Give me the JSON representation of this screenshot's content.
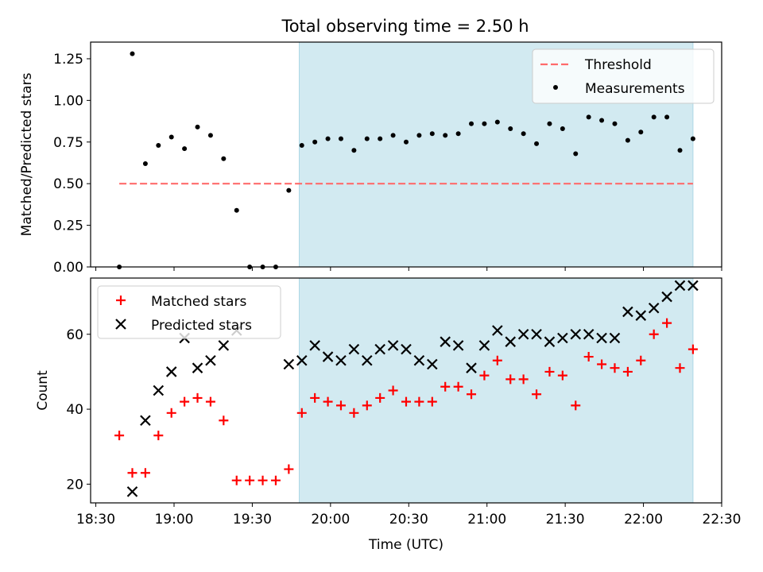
{
  "title": "Total observing time = 2.50 h",
  "colors": {
    "shade": "#add8e6",
    "threshold": "#ff6b6b",
    "measurements": "#000000",
    "matched": "#ff0000",
    "predicted": "#000000"
  },
  "chart_data": [
    {
      "type": "scatter",
      "ylabel": "Matched/Predicted stars",
      "xlim": [
        "18:28",
        "22:30"
      ],
      "ylim": [
        0,
        1.35
      ],
      "yticks": [
        "0.00",
        "0.25",
        "0.50",
        "0.75",
        "1.00",
        "1.25"
      ],
      "shaded_span": [
        "19:48",
        "22:19"
      ],
      "legend": {
        "position": "top-right",
        "entries": [
          "Threshold",
          "Measurements"
        ]
      },
      "threshold": {
        "name": "Threshold",
        "y": 0.5,
        "x_range": [
          "18:39",
          "22:19"
        ]
      },
      "series": [
        {
          "name": "Measurements",
          "points": [
            [
              "18:39",
              0.0
            ],
            [
              "18:44",
              1.28
            ],
            [
              "18:49",
              0.62
            ],
            [
              "18:54",
              0.73
            ],
            [
              "18:59",
              0.78
            ],
            [
              "19:04",
              0.71
            ],
            [
              "19:09",
              0.84
            ],
            [
              "19:14",
              0.79
            ],
            [
              "19:19",
              0.65
            ],
            [
              "19:24",
              0.34
            ],
            [
              "19:29",
              0.0
            ],
            [
              "19:34",
              0.0
            ],
            [
              "19:39",
              0.0
            ],
            [
              "19:44",
              0.46
            ],
            [
              "19:49",
              0.73
            ],
            [
              "19:54",
              0.75
            ],
            [
              "19:59",
              0.77
            ],
            [
              "20:04",
              0.77
            ],
            [
              "20:09",
              0.7
            ],
            [
              "20:14",
              0.77
            ],
            [
              "20:19",
              0.77
            ],
            [
              "20:24",
              0.79
            ],
            [
              "20:29",
              0.75
            ],
            [
              "20:34",
              0.79
            ],
            [
              "20:39",
              0.8
            ],
            [
              "20:44",
              0.79
            ],
            [
              "20:49",
              0.8
            ],
            [
              "20:54",
              0.86
            ],
            [
              "20:59",
              0.86
            ],
            [
              "21:04",
              0.87
            ],
            [
              "21:09",
              0.83
            ],
            [
              "21:14",
              0.8
            ],
            [
              "21:19",
              0.74
            ],
            [
              "21:24",
              0.86
            ],
            [
              "21:29",
              0.83
            ],
            [
              "21:34",
              0.68
            ],
            [
              "21:39",
              0.9
            ],
            [
              "21:44",
              0.88
            ],
            [
              "21:49",
              0.86
            ],
            [
              "21:54",
              0.76
            ],
            [
              "21:59",
              0.81
            ],
            [
              "22:04",
              0.9
            ],
            [
              "22:09",
              0.9
            ],
            [
              "22:14",
              0.7
            ],
            [
              "22:19",
              0.77
            ]
          ]
        }
      ]
    },
    {
      "type": "scatter",
      "xlabel": "Time (UTC)",
      "ylabel": "Count",
      "xlim": [
        "18:28",
        "22:30"
      ],
      "ylim": [
        15,
        75
      ],
      "yticks": [
        "20",
        "40",
        "60"
      ],
      "xticks": [
        "18:30",
        "19:00",
        "19:30",
        "20:00",
        "20:30",
        "21:00",
        "21:30",
        "22:00",
        "22:30"
      ],
      "shaded_span": [
        "19:48",
        "22:19"
      ],
      "legend": {
        "position": "top-left",
        "entries": [
          "Matched stars",
          "Predicted stars"
        ]
      },
      "series": [
        {
          "name": "Matched stars",
          "points": [
            [
              "18:39",
              33
            ],
            [
              "18:44",
              23
            ],
            [
              "18:49",
              23
            ],
            [
              "18:54",
              33
            ],
            [
              "18:59",
              39
            ],
            [
              "19:04",
              42
            ],
            [
              "19:09",
              43
            ],
            [
              "19:14",
              42
            ],
            [
              "19:19",
              37
            ],
            [
              "19:24",
              21
            ],
            [
              "19:29",
              21
            ],
            [
              "19:34",
              21
            ],
            [
              "19:39",
              21
            ],
            [
              "19:44",
              24
            ],
            [
              "19:49",
              39
            ],
            [
              "19:54",
              43
            ],
            [
              "19:59",
              42
            ],
            [
              "20:04",
              41
            ],
            [
              "20:09",
              39
            ],
            [
              "20:14",
              41
            ],
            [
              "20:19",
              43
            ],
            [
              "20:24",
              45
            ],
            [
              "20:29",
              42
            ],
            [
              "20:34",
              42
            ],
            [
              "20:39",
              42
            ],
            [
              "20:44",
              46
            ],
            [
              "20:49",
              46
            ],
            [
              "20:54",
              44
            ],
            [
              "20:59",
              49
            ],
            [
              "21:04",
              53
            ],
            [
              "21:09",
              48
            ],
            [
              "21:14",
              48
            ],
            [
              "21:19",
              44
            ],
            [
              "21:24",
              50
            ],
            [
              "21:29",
              49
            ],
            [
              "21:34",
              41
            ],
            [
              "21:39",
              54
            ],
            [
              "21:44",
              52
            ],
            [
              "21:49",
              51
            ],
            [
              "21:54",
              50
            ],
            [
              "21:59",
              53
            ],
            [
              "22:04",
              60
            ],
            [
              "22:09",
              63
            ],
            [
              "22:14",
              51
            ],
            [
              "22:19",
              56
            ]
          ]
        },
        {
          "name": "Predicted stars",
          "points": [
            [
              "18:44",
              18
            ],
            [
              "18:49",
              37
            ],
            [
              "18:54",
              45
            ],
            [
              "18:59",
              50
            ],
            [
              "19:04",
              59
            ],
            [
              "19:09",
              51
            ],
            [
              "19:14",
              53
            ],
            [
              "19:19",
              57
            ],
            [
              "19:24",
              61
            ],
            [
              "19:44",
              52
            ],
            [
              "19:49",
              53
            ],
            [
              "19:54",
              57
            ],
            [
              "19:59",
              54
            ],
            [
              "20:04",
              53
            ],
            [
              "20:09",
              56
            ],
            [
              "20:14",
              53
            ],
            [
              "20:19",
              56
            ],
            [
              "20:24",
              57
            ],
            [
              "20:29",
              56
            ],
            [
              "20:34",
              53
            ],
            [
              "20:39",
              52
            ],
            [
              "20:44",
              58
            ],
            [
              "20:49",
              57
            ],
            [
              "20:54",
              51
            ],
            [
              "20:59",
              57
            ],
            [
              "21:04",
              61
            ],
            [
              "21:09",
              58
            ],
            [
              "21:14",
              60
            ],
            [
              "21:19",
              60
            ],
            [
              "21:24",
              58
            ],
            [
              "21:29",
              59
            ],
            [
              "21:34",
              60
            ],
            [
              "21:39",
              60
            ],
            [
              "21:44",
              59
            ],
            [
              "21:49",
              59
            ],
            [
              "21:54",
              66
            ],
            [
              "21:59",
              65
            ],
            [
              "22:04",
              67
            ],
            [
              "22:09",
              70
            ],
            [
              "22:14",
              73
            ],
            [
              "22:19",
              73
            ]
          ]
        }
      ]
    }
  ]
}
